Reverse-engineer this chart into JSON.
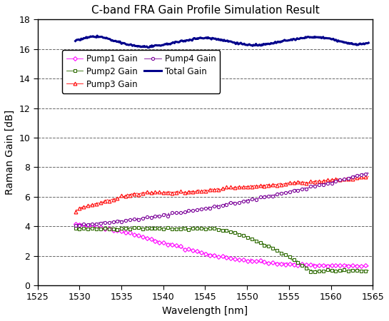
{
  "title": "C-band FRA Gain Profile Simulation Result",
  "xlabel": "Wavelength [nm]",
  "ylabel": "Raman Gain [dB]",
  "xlim": [
    1525,
    1565
  ],
  "ylim": [
    0,
    18
  ],
  "yticks": [
    0,
    2,
    4,
    6,
    8,
    10,
    12,
    14,
    16,
    18
  ],
  "xticks": [
    1525,
    1530,
    1535,
    1540,
    1545,
    1550,
    1555,
    1560,
    1565
  ],
  "pump1_color": "#ff00ff",
  "pump2_color": "#2d6a00",
  "pump3_color": "#ff0000",
  "pump4_color": "#7b0099",
  "total_color": "#00008B",
  "legend_entries": [
    "Pump1 Gain",
    "Pump2 Gain",
    "Pump3 Gain",
    "Pump4 Gain",
    "Total Gain"
  ],
  "x_start": 1529.5,
  "x_end": 1564.5,
  "n_points": 350
}
